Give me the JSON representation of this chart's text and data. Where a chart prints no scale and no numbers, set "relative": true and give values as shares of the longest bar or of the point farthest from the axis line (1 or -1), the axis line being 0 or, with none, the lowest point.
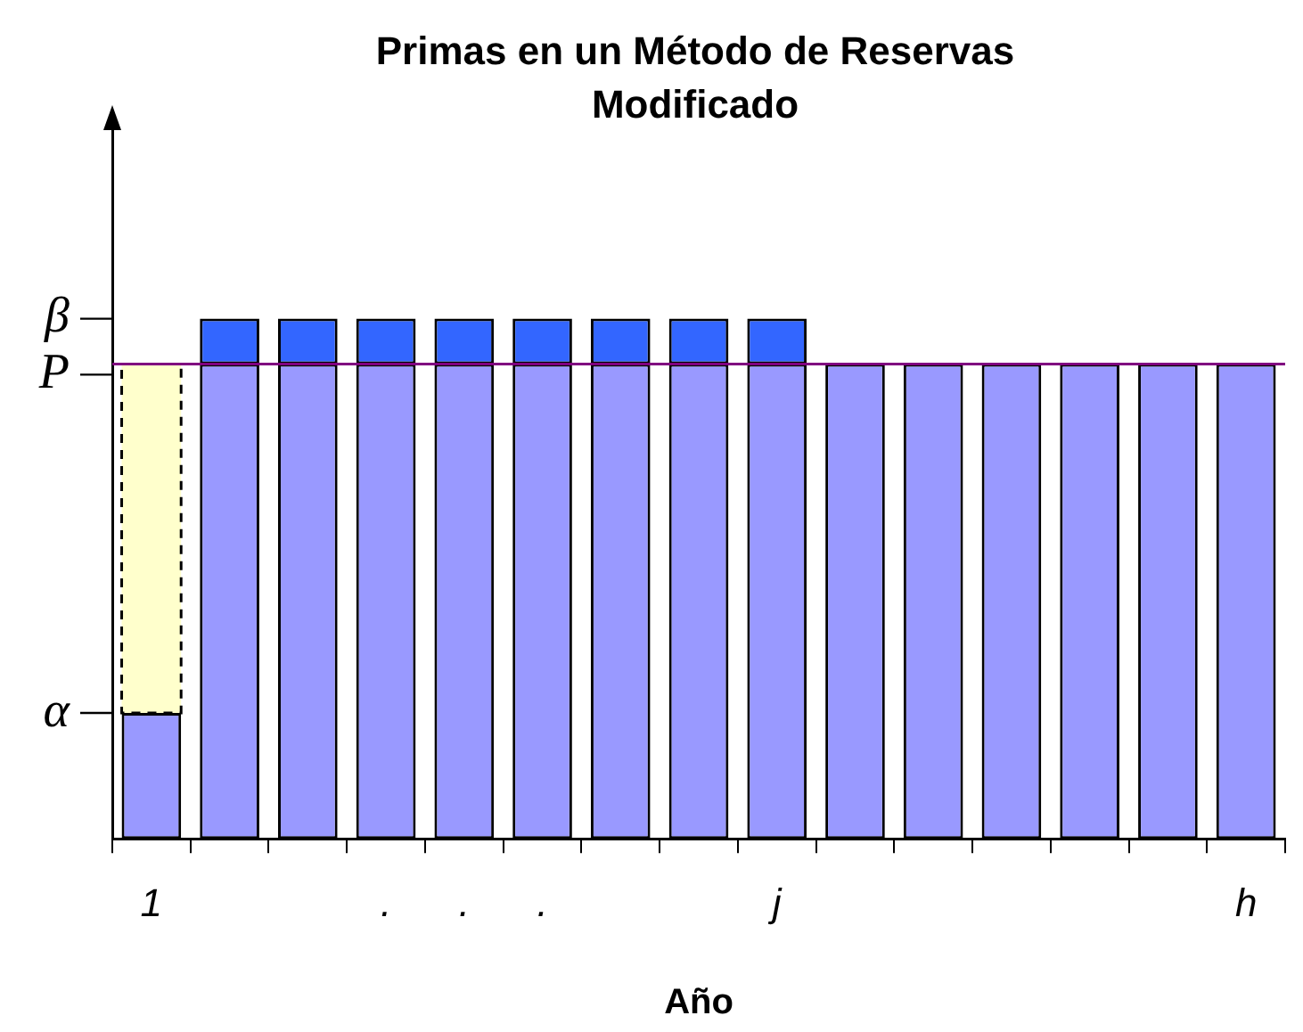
{
  "chart_data": {
    "type": "bar",
    "title": "Primas en un Método de Reservas Modificado",
    "xlabel": "Año",
    "categories": [
      "1",
      null,
      null,
      ".",
      ".",
      ".",
      null,
      null,
      "j",
      null,
      null,
      null,
      null,
      null,
      "h"
    ],
    "relative": true,
    "stacked": true,
    "legend": false,
    "grid": false,
    "series": [
      {
        "color": "#9999ff",
        "values": [
          0.242,
          0.913,
          0.913,
          0.913,
          0.913,
          0.913,
          0.913,
          0.913,
          0.913,
          0.913,
          0.913,
          0.913,
          0.913,
          0.913,
          0.913
        ]
      },
      {
        "color": "#3366ff",
        "values": [
          null,
          0.087,
          0.087,
          0.087,
          0.087,
          0.087,
          0.087,
          0.087,
          0.087,
          null,
          null,
          null,
          null,
          null,
          null
        ]
      },
      {
        "color": "#ffffcc",
        "line_style": "dashed",
        "values": [
          0.671,
          null,
          null,
          null,
          null,
          null,
          null,
          null,
          null,
          null,
          null,
          null,
          null,
          null,
          null
        ]
      }
    ],
    "ref_lines": [
      {
        "axis": "y",
        "value": 0.913,
        "label": "P",
        "color": "#800080"
      }
    ],
    "annotations": [
      "α",
      "β"
    ]
  }
}
